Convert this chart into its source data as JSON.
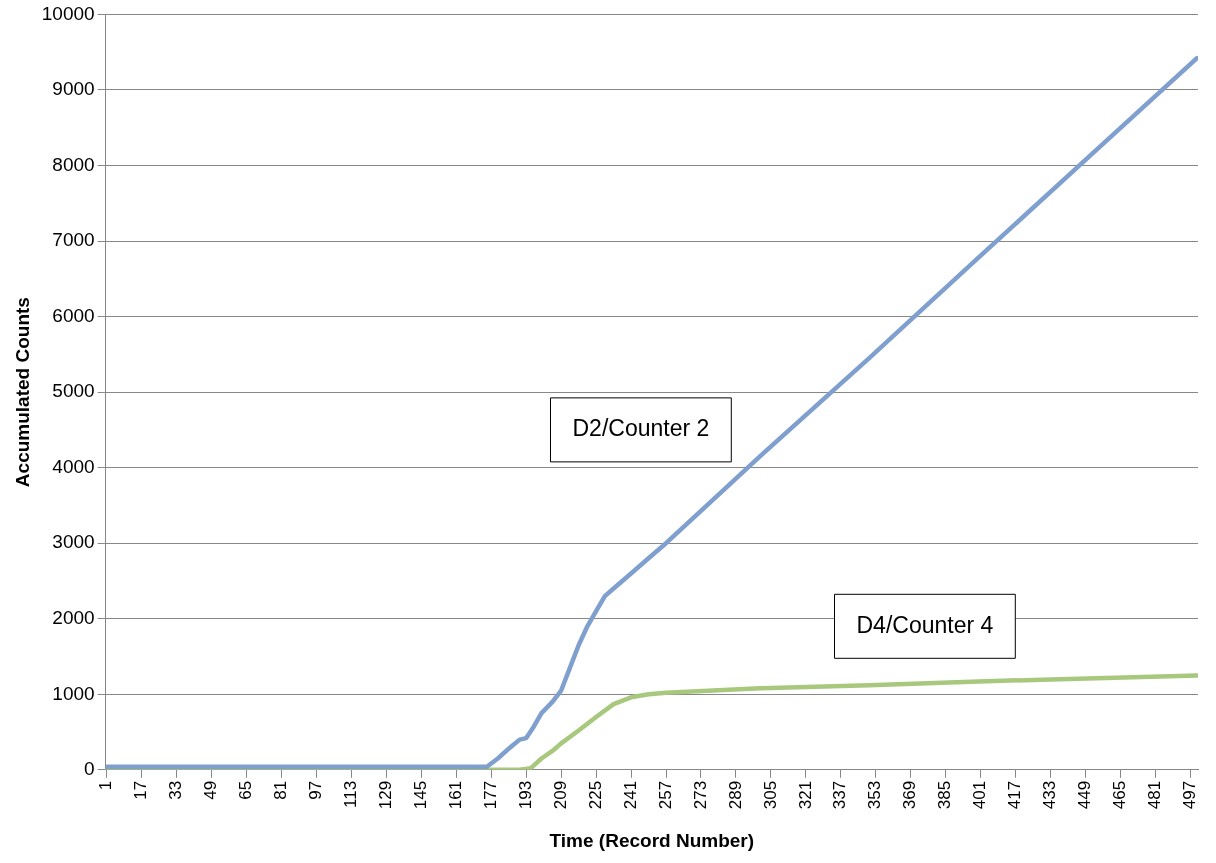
{
  "chart_data": {
    "type": "line",
    "xlabel": "Time (Record Number)",
    "ylabel": "Accumulated Counts",
    "xlim": [
      0.5,
      500.5
    ],
    "xticks": [
      1,
      17,
      33,
      49,
      65,
      81,
      97,
      113,
      129,
      145,
      161,
      177,
      193,
      209,
      225,
      241,
      257,
      273,
      289,
      305,
      321,
      337,
      353,
      369,
      385,
      401,
      417,
      433,
      449,
      465,
      481,
      497
    ],
    "ylim": [
      0,
      10000
    ],
    "yticks": [
      0,
      1000,
      2000,
      3000,
      4000,
      5000,
      6000,
      7000,
      8000,
      9000,
      10000
    ],
    "grid": "y",
    "legend": false,
    "marker": "none",
    "line_style": "solid",
    "series": [
      {
        "name": "D2/Counter 2",
        "color": "#7f9fcf",
        "x": [
          1,
          50,
          100,
          150,
          175,
          180,
          185,
          190,
          193,
          196,
          200,
          205,
          209,
          213,
          217,
          221,
          225,
          229,
          233,
          237,
          241,
          249,
          257,
          300,
          350,
          400,
          450,
          500
        ],
        "values": [
          40,
          40,
          40,
          40,
          40,
          150,
          280,
          400,
          420,
          550,
          750,
          900,
          1050,
          1350,
          1650,
          1900,
          2100,
          2300,
          2400,
          2500,
          2600,
          2800,
          3000,
          4150,
          5450,
          6780,
          8100,
          9420
        ]
      },
      {
        "name": "D4/Counter 4",
        "color": "#a8c87e",
        "x": [
          1,
          100,
          190,
          195,
          200,
          205,
          209,
          217,
          225,
          233,
          241,
          249,
          257,
          300,
          350,
          400,
          450,
          500
        ],
        "values": [
          0,
          0,
          0,
          20,
          150,
          250,
          350,
          520,
          700,
          870,
          960,
          1000,
          1020,
          1080,
          1120,
          1170,
          1210,
          1250
        ]
      }
    ]
  }
}
